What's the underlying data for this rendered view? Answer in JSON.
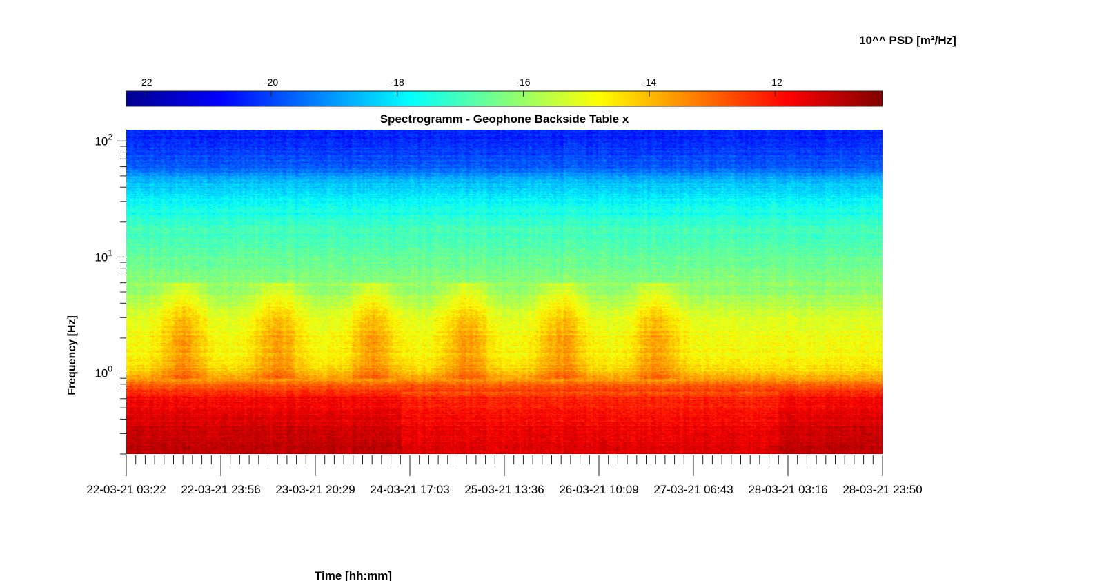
{
  "chart_data": {
    "type": "heatmap",
    "title": "Spectrogramm - Geophone Backside Table x",
    "xlabel": "Time [hh:mm]",
    "ylabel": "Frequency [Hz]",
    "colorbar_label": "10^^ PSD [m²/Hz]",
    "colormap": "jet",
    "color_range": [
      -22.3,
      -10.3
    ],
    "colorbar_ticks": [
      "-22",
      "-20",
      "-18",
      "-16",
      "-14",
      "-12"
    ],
    "colorbar_tick_values": [
      -22,
      -20,
      -18,
      -16,
      -14,
      -12
    ],
    "y_scale": "log",
    "y_range_hz": [
      0.2,
      125
    ],
    "y_tick_values": [
      1,
      10,
      100
    ],
    "y_tick_labels": [
      {
        "base": "10",
        "exp": "0"
      },
      {
        "base": "10",
        "exp": "1"
      },
      {
        "base": "10",
        "exp": "2"
      }
    ],
    "x_tick_labels": [
      "22-03-21 03:22",
      "22-03-21 23:56",
      "23-03-21 20:29",
      "24-03-21 17:03",
      "25-03-21 13:36",
      "26-03-21 10:09",
      "27-03-21 06:43",
      "28-03-21 03:16",
      "28-03-21 23:50"
    ],
    "x_minor_ticks_per_major": 10,
    "frequency_profile": {
      "freq_hz": [
        0.2,
        0.35,
        0.6,
        0.8,
        1.0,
        1.5,
        3,
        5,
        10,
        20,
        30,
        45,
        60,
        125
      ],
      "psd_log10": [
        -11.0,
        -11.3,
        -11.8,
        -13.0,
        -14.3,
        -14.8,
        -15.2,
        -16.0,
        -16.6,
        -17.2,
        -17.8,
        -18.6,
        -19.8,
        -20.5
      ]
    },
    "daily_peaks_hour": [
      0.6,
      1.6,
      2.6,
      3.6,
      4.6,
      5.6
    ]
  }
}
